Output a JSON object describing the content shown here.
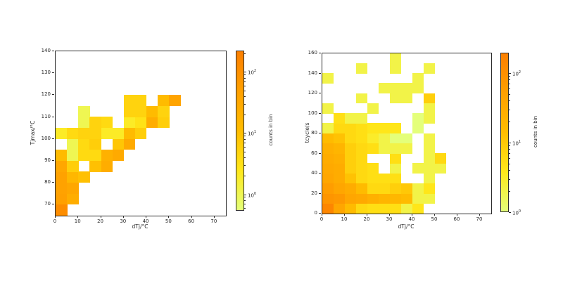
{
  "figure": {
    "background": "#ffffff",
    "text_color": "#262626",
    "spine_color": "#2b2b2b"
  },
  "colormap": {
    "name": "yellowgreen-to-orange",
    "stops": [
      "#e4ff7a",
      "#ffe81a",
      "#ffbd00",
      "#ffa000",
      "#fc7f00"
    ]
  },
  "chart_data": [
    {
      "type": "heatmap",
      "xlabel": "dTj/°C",
      "ylabel": "Tjmax/°C",
      "x_range": [
        0,
        75
      ],
      "y_range": [
        65,
        140
      ],
      "x_ticks": [
        0,
        10,
        20,
        30,
        40,
        50,
        60,
        70
      ],
      "y_ticks": [
        70,
        80,
        90,
        100,
        110,
        120,
        130,
        140
      ],
      "x_bin_width": 5,
      "y_bin_height": 5,
      "grid": false,
      "legend": "none",
      "color_scale": {
        "type": "log",
        "log10_min": -0.27,
        "log10_max": 2.35
      },
      "colorbar": {
        "label": "counts in bin",
        "tick_exponents": [
          0,
          1,
          2
        ]
      },
      "matrix_origin": "bottom-left",
      "counts_bottom_up": [
        [
          120,
          0,
          0,
          0,
          0,
          0,
          0,
          0,
          0,
          0,
          0
        ],
        [
          50,
          25,
          0,
          0,
          0,
          0,
          0,
          0,
          0,
          0,
          0
        ],
        [
          45,
          35,
          0,
          0,
          0,
          0,
          0,
          0,
          0,
          0,
          0
        ],
        [
          45,
          15,
          10,
          0,
          0,
          0,
          0,
          0,
          0,
          0,
          0
        ],
        [
          35,
          6,
          0,
          10,
          25,
          0,
          0,
          0,
          0,
          0,
          0
        ],
        [
          12,
          1,
          4,
          4,
          20,
          30,
          0,
          0,
          0,
          0,
          0
        ],
        [
          0,
          1,
          4,
          6,
          0,
          8,
          30,
          0,
          0,
          0,
          0
        ],
        [
          2,
          4,
          5,
          5,
          2,
          2,
          12,
          6,
          0,
          0,
          0
        ],
        [
          0,
          0,
          1,
          5,
          4,
          0,
          2,
          3,
          25,
          6,
          0
        ],
        [
          0,
          0,
          1,
          0,
          0,
          0,
          5,
          5,
          12,
          5,
          0
        ],
        [
          0,
          0,
          0,
          0,
          0,
          0,
          5,
          5,
          0,
          12,
          40
        ]
      ]
    },
    {
      "type": "heatmap",
      "xlabel": "dTj/°C",
      "ylabel": "tcycle/s",
      "x_range": [
        0,
        75
      ],
      "y_range": [
        0,
        160
      ],
      "x_ticks": [
        0,
        10,
        20,
        30,
        40,
        50,
        60,
        70
      ],
      "y_ticks": [
        0,
        20,
        40,
        60,
        80,
        100,
        120,
        140,
        160
      ],
      "x_bin_width": 5,
      "y_bin_height": 10,
      "grid": false,
      "legend": "none",
      "color_scale": {
        "type": "log",
        "log10_min": 0,
        "log10_max": 2.29
      },
      "colorbar": {
        "label": "counts in bin",
        "tick_exponents": [
          0,
          1,
          2
        ]
      },
      "matrix_origin": "bottom-left",
      "counts_bottom_up": [
        [
          150,
          40,
          15,
          6,
          5,
          5,
          5,
          2,
          4,
          0,
          0
        ],
        [
          80,
          70,
          40,
          35,
          25,
          20,
          18,
          15,
          2,
          2,
          0
        ],
        [
          60,
          40,
          30,
          15,
          6,
          6,
          8,
          10,
          2,
          4,
          0
        ],
        [
          40,
          30,
          12,
          6,
          5,
          5,
          5,
          0,
          0,
          2,
          0
        ],
        [
          35,
          30,
          8,
          6,
          5,
          0,
          2,
          0,
          2,
          2,
          2
        ],
        [
          30,
          25,
          8,
          6,
          0,
          0,
          5,
          0,
          0,
          2,
          6
        ],
        [
          25,
          20,
          8,
          6,
          5,
          2,
          2,
          2,
          0,
          2,
          0
        ],
        [
          15,
          12,
          6,
          5,
          3,
          2,
          1,
          1,
          0,
          2,
          0
        ],
        [
          2,
          6,
          6,
          5,
          4,
          4,
          4,
          0,
          1,
          0,
          0
        ],
        [
          0,
          5,
          2,
          2,
          0,
          0,
          0,
          0,
          1,
          2,
          0
        ],
        [
          2,
          0,
          0,
          0,
          2,
          0,
          0,
          0,
          0,
          2,
          0
        ],
        [
          0,
          0,
          0,
          2,
          0,
          0,
          2,
          2,
          0,
          8,
          0
        ],
        [
          0,
          0,
          0,
          0,
          0,
          2,
          2,
          2,
          2,
          0,
          0
        ],
        [
          2,
          0,
          0,
          0,
          0,
          0,
          0,
          0,
          2,
          0,
          0
        ],
        [
          0,
          0,
          0,
          2,
          0,
          0,
          2,
          0,
          0,
          2,
          0
        ],
        [
          0,
          0,
          0,
          0,
          0,
          0,
          2,
          0,
          0,
          0,
          0
        ]
      ]
    }
  ]
}
